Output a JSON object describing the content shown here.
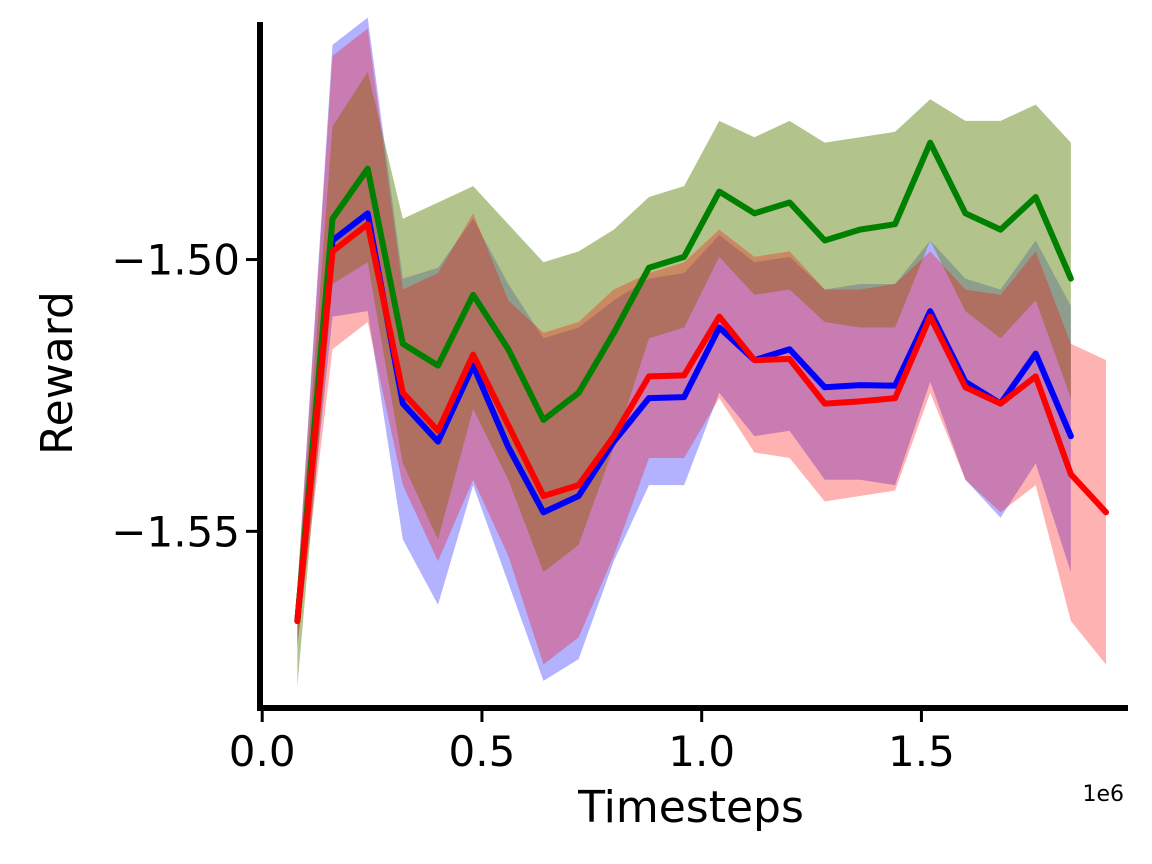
{
  "chart_data": {
    "type": "line",
    "title": "",
    "xlabel": "Timesteps",
    "ylabel": "Reward",
    "x_offset_label": "1e6",
    "xlim": [
      -0.005,
      1.97
    ],
    "ylim": [
      -1.5825,
      -1.4563
    ],
    "xticks": [
      {
        "value": 0.0,
        "label": "0.0"
      },
      {
        "value": 0.5,
        "label": "0.5"
      },
      {
        "value": 1.0,
        "label": "1.0"
      },
      {
        "value": 1.5,
        "label": "1.5"
      }
    ],
    "yticks": [
      {
        "value": -1.5,
        "label": "−1.50"
      },
      {
        "value": -1.55,
        "label": "−1.55"
      }
    ],
    "grid": false,
    "legend": "none",
    "series": [
      {
        "color": "#0000ff",
        "band_color": "#0000ff",
        "band_opacity": 0.3,
        "x": [
          0.08,
          0.16,
          0.24,
          0.32,
          0.4,
          0.48,
          0.56,
          0.64,
          0.72,
          0.8,
          0.88,
          0.96,
          1.04,
          1.12,
          1.2,
          1.28,
          1.36,
          1.44,
          1.52,
          1.6,
          1.68,
          1.76,
          1.84
        ],
        "y": [
          -1.5665,
          -1.4965,
          -1.4915,
          -1.5265,
          -1.5335,
          -1.5195,
          -1.5345,
          -1.5465,
          -1.5435,
          -1.5335,
          -1.5255,
          -1.5253,
          -1.5125,
          -1.5185,
          -1.5165,
          -1.5235,
          -1.5231,
          -1.5232,
          -1.5095,
          -1.5225,
          -1.5265,
          -1.5173,
          -1.5325
        ],
        "upper": [
          -1.5605,
          -1.4605,
          -1.4555,
          -1.5035,
          -1.5015,
          -1.4925,
          -1.5045,
          -1.5145,
          -1.5125,
          -1.5075,
          -1.5035,
          -1.5025,
          -1.4955,
          -1.5005,
          -1.4995,
          -1.5055,
          -1.5045,
          -1.5045,
          -1.4965,
          -1.5035,
          -1.5055,
          -1.4965,
          -1.5085
        ],
        "lower": [
          -1.5715,
          -1.5105,
          -1.5095,
          -1.5515,
          -1.5635,
          -1.5415,
          -1.5595,
          -1.5775,
          -1.5735,
          -1.5555,
          -1.5415,
          -1.5415,
          -1.5245,
          -1.5325,
          -1.5315,
          -1.5405,
          -1.5405,
          -1.5415,
          -1.5225,
          -1.5405,
          -1.5475,
          -1.5375,
          -1.5575
        ]
      },
      {
        "color": "#008000",
        "band_color": "#6b8e23",
        "band_opacity": 0.52,
        "x": [
          0.08,
          0.16,
          0.24,
          0.32,
          0.4,
          0.48,
          0.56,
          0.64,
          0.72,
          0.8,
          0.88,
          0.96,
          1.04,
          1.12,
          1.2,
          1.28,
          1.36,
          1.44,
          1.52,
          1.6,
          1.68,
          1.76,
          1.84
        ],
        "y": [
          -1.5665,
          -1.4925,
          -1.4833,
          -1.5155,
          -1.5195,
          -1.5065,
          -1.5165,
          -1.5295,
          -1.5245,
          -1.5135,
          -1.5015,
          -1.4995,
          -1.4875,
          -1.4915,
          -1.4895,
          -1.4965,
          -1.4945,
          -1.4935,
          -1.4785,
          -1.4915,
          -1.4945,
          -1.4885,
          -1.5035
        ],
        "upper": [
          -1.5605,
          -1.4755,
          -1.4655,
          -1.4925,
          -1.4895,
          -1.4865,
          -1.4935,
          -1.5005,
          -1.4985,
          -1.4945,
          -1.4885,
          -1.4865,
          -1.4745,
          -1.4775,
          -1.4745,
          -1.4785,
          -1.4775,
          -1.4765,
          -1.4705,
          -1.4745,
          -1.4745,
          -1.4715,
          -1.4785
        ],
        "lower": [
          -1.5785,
          -1.5045,
          -1.5005,
          -1.5375,
          -1.5515,
          -1.5275,
          -1.5405,
          -1.5575,
          -1.5525,
          -1.5345,
          -1.5145,
          -1.5125,
          -1.4995,
          -1.5065,
          -1.5055,
          -1.5115,
          -1.5125,
          -1.5125,
          -1.4965,
          -1.5095,
          -1.5145,
          -1.5075,
          -1.5255
        ]
      },
      {
        "color": "#ff0000",
        "band_color": "#ff0000",
        "band_opacity": 0.3,
        "x": [
          0.08,
          0.16,
          0.24,
          0.32,
          0.4,
          0.48,
          0.56,
          0.64,
          0.72,
          0.8,
          0.88,
          0.96,
          1.04,
          1.12,
          1.2,
          1.28,
          1.36,
          1.44,
          1.52,
          1.6,
          1.68,
          1.76,
          1.84,
          1.92
        ],
        "y": [
          -1.5665,
          -1.4985,
          -1.4935,
          -1.5245,
          -1.5315,
          -1.5175,
          -1.5305,
          -1.5435,
          -1.5415,
          -1.5325,
          -1.5215,
          -1.5213,
          -1.5105,
          -1.5185,
          -1.5183,
          -1.5265,
          -1.5261,
          -1.5255,
          -1.5105,
          -1.5235,
          -1.5265,
          -1.5215,
          -1.5395,
          -1.5465
        ],
        "upper": [
          -1.5605,
          -1.4625,
          -1.4575,
          -1.5055,
          -1.5025,
          -1.4915,
          -1.5075,
          -1.5135,
          -1.5115,
          -1.5055,
          -1.5025,
          -1.5005,
          -1.4945,
          -1.4995,
          -1.4985,
          -1.5055,
          -1.5055,
          -1.5045,
          -1.4985,
          -1.5055,
          -1.5065,
          -1.4985,
          -1.5155,
          -1.5185
        ],
        "lower": [
          -1.5705,
          -1.5165,
          -1.5115,
          -1.5415,
          -1.5555,
          -1.5405,
          -1.5545,
          -1.5745,
          -1.5695,
          -1.5545,
          -1.5365,
          -1.5365,
          -1.5255,
          -1.5355,
          -1.5365,
          -1.5445,
          -1.5435,
          -1.5425,
          -1.5245,
          -1.5405,
          -1.5465,
          -1.5415,
          -1.5665,
          -1.5745
        ]
      }
    ]
  }
}
